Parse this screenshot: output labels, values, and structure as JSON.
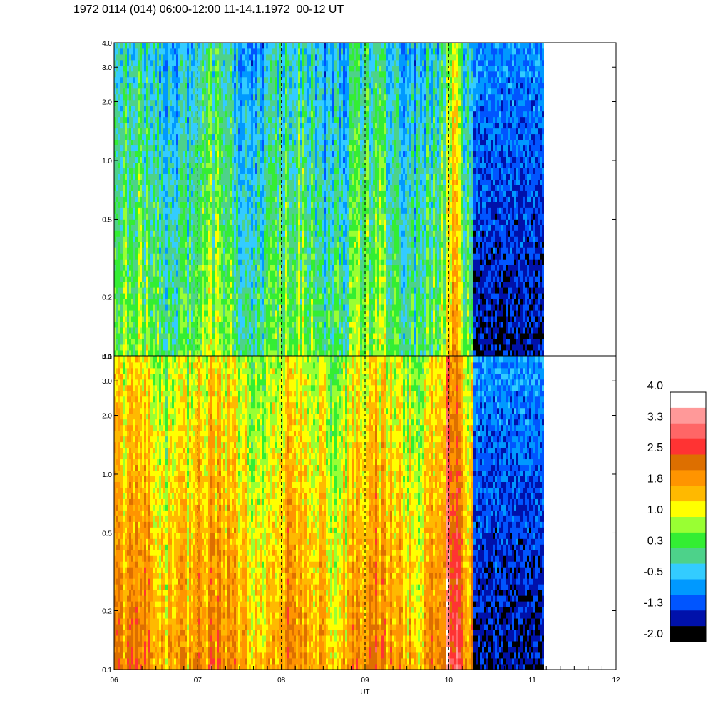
{
  "title": "1972 0114 (014) 06:00-12:00 11-14.1.1972  00-12 UT",
  "chart_data": {
    "type": "heatmap",
    "title": "1972 0114 (014) 06:00-12:00 11-14.1.1972  00-12 UT",
    "xlabel": "UT",
    "ylabel": "",
    "x_ticks": [
      "06",
      "07",
      "08",
      "09",
      "10",
      "11",
      "12"
    ],
    "xlim": [
      6,
      12
    ],
    "y_scale": "log",
    "y_ticks": [
      "0.1",
      "0.2",
      "0.5",
      "1.0",
      "2.0",
      "3.0",
      "4.0"
    ],
    "y_tick_values": [
      0.1,
      0.2,
      0.5,
      1.0,
      2.0,
      3.0,
      4.0
    ],
    "ylim": [
      0.1,
      4.0
    ],
    "data_end_time": 11.12,
    "dropout_start_time": 10.28,
    "dashed_lines_at": [
      7,
      8,
      9,
      10
    ],
    "panels": [
      {
        "name": "top",
        "dominant_level_low_freq": 0.5,
        "dominant_level_high_freq": -0.3
      },
      {
        "name": "bottom",
        "dominant_level_low_freq": 1.9,
        "dominant_level_high_freq": 1.0
      }
    ],
    "colorbar": {
      "labels": [
        "4.0",
        "3.3",
        "2.5",
        "1.8",
        "1.0",
        "0.3",
        "-0.5",
        "-1.3",
        "-2.0"
      ],
      "label_values": [
        4.0,
        3.3,
        2.5,
        1.8,
        1.0,
        0.3,
        -0.5,
        -1.3,
        -2.0
      ],
      "colors_top_to_bottom": [
        "#ffffff",
        "#ff9999",
        "#ff6666",
        "#ff3333",
        "#dd6f00",
        "#ff9400",
        "#ffb900",
        "#ffff00",
        "#99ff33",
        "#33ee33",
        "#4dd28a",
        "#33ccff",
        "#0099ff",
        "#0055ff",
        "#0011aa",
        "#000000"
      ]
    }
  }
}
